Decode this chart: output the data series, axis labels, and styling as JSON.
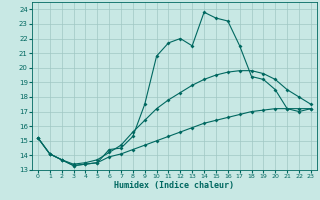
{
  "xlabel": "Humidex (Indice chaleur)",
  "x_ticks": [
    0,
    1,
    2,
    3,
    4,
    5,
    6,
    7,
    8,
    9,
    10,
    11,
    12,
    13,
    14,
    15,
    16,
    17,
    18,
    19,
    20,
    21,
    22,
    23
  ],
  "xlim": [
    -0.5,
    23.5
  ],
  "ylim": [
    13,
    24.5
  ],
  "y_ticks": [
    13,
    14,
    15,
    16,
    17,
    18,
    19,
    20,
    21,
    22,
    23,
    24
  ],
  "background_color": "#c8e8e4",
  "grid_color": "#a0c8c4",
  "line_color": "#006860",
  "line1_y": [
    15.2,
    14.1,
    13.7,
    13.3,
    13.4,
    13.5,
    14.4,
    14.5,
    15.3,
    17.5,
    20.8,
    21.7,
    22.0,
    21.5,
    23.8,
    23.4,
    23.2,
    21.5,
    19.4,
    19.2,
    18.5,
    17.2,
    17.0,
    17.2
  ],
  "line2_y": [
    15.2,
    14.1,
    13.7,
    13.4,
    13.5,
    13.7,
    14.2,
    14.7,
    15.6,
    16.4,
    17.2,
    17.8,
    18.3,
    18.8,
    19.2,
    19.5,
    19.7,
    19.8,
    19.8,
    19.6,
    19.2,
    18.5,
    18.0,
    17.5
  ],
  "line3_y": [
    15.2,
    14.1,
    13.7,
    13.3,
    13.4,
    13.5,
    13.9,
    14.1,
    14.4,
    14.7,
    15.0,
    15.3,
    15.6,
    15.9,
    16.2,
    16.4,
    16.6,
    16.8,
    17.0,
    17.1,
    17.2,
    17.2,
    17.2,
    17.2
  ]
}
